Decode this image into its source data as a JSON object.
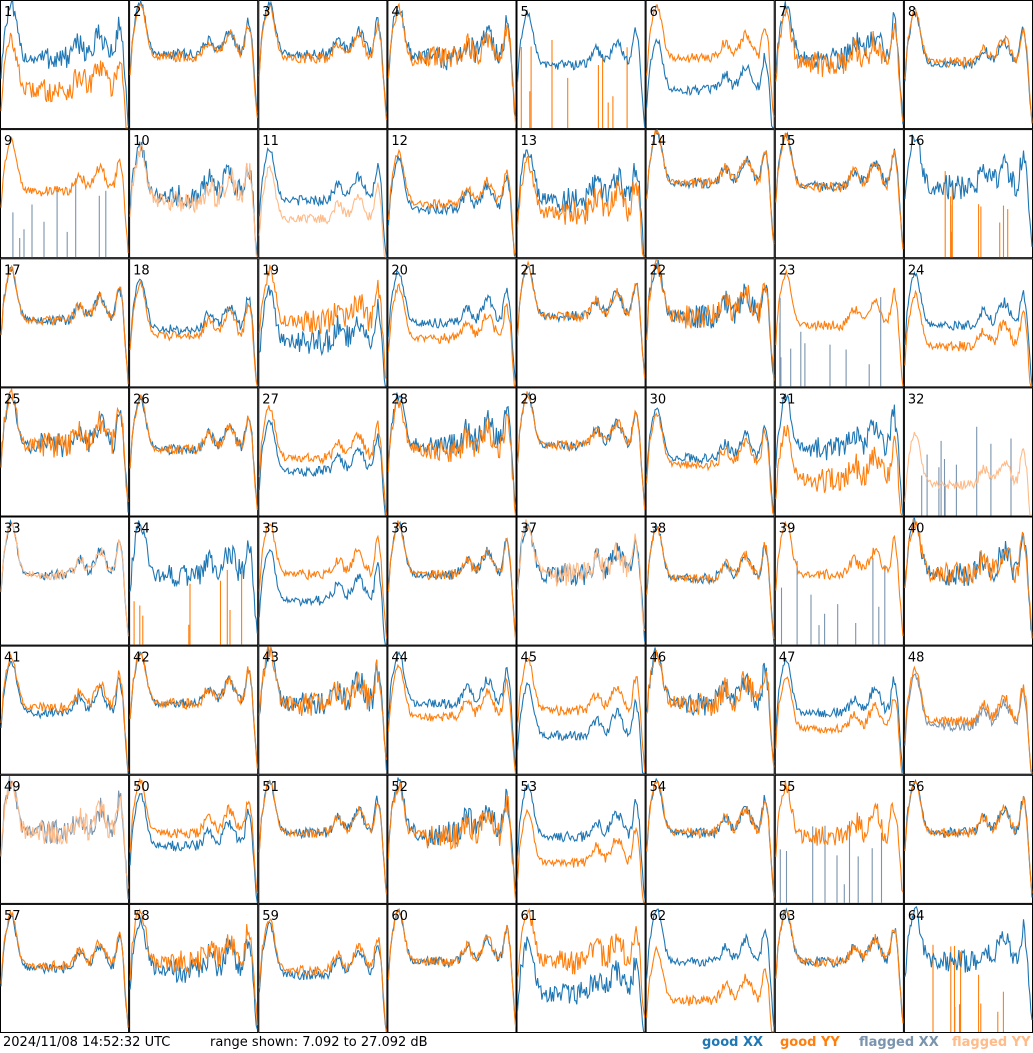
{
  "footer": {
    "timestamp": "2024/11/08 14:52:32 UTC",
    "range": "range shown: 7.092 to 27.092 dB"
  },
  "legend": [
    {
      "label": "good XX",
      "color": "#1f77b4"
    },
    {
      "label": "good YY",
      "color": "#ff7f0e"
    },
    {
      "label": "flagged XX",
      "color": "#7a94ae"
    },
    {
      "label": "flagged YY",
      "color": "#ffbb88"
    }
  ],
  "chart_data": {
    "type": "line",
    "grid": {
      "rows": 8,
      "cols": 8
    },
    "yrange_db": [
      7.092,
      27.092
    ],
    "tiles": [
      {
        "label": "1",
        "xx": "good",
        "yy": "good",
        "x_lvl": 0.55,
        "y_lvl": 0.3,
        "front": "yy"
      },
      {
        "label": "2",
        "xx": "good",
        "yy": "good",
        "x_lvl": 0.58,
        "y_lvl": 0.56,
        "front": "yy"
      },
      {
        "label": "3",
        "xx": "good",
        "yy": "good",
        "x_lvl": 0.58,
        "y_lvl": 0.55,
        "front": "yy"
      },
      {
        "label": "4",
        "xx": "good",
        "yy": "good",
        "x_lvl": 0.55,
        "y_lvl": 0.54,
        "front": "yy"
      },
      {
        "label": "5",
        "xx": "good",
        "yy": "good",
        "x_lvl": 0.5,
        "y_lvl": 0.0,
        "front": "xx"
      },
      {
        "label": "6",
        "xx": "good",
        "yy": "good",
        "x_lvl": 0.3,
        "y_lvl": 0.55,
        "front": "yy"
      },
      {
        "label": "7",
        "xx": "good",
        "yy": "good",
        "x_lvl": 0.56,
        "y_lvl": 0.5,
        "front": "yy"
      },
      {
        "label": "8",
        "xx": "good",
        "yy": "good",
        "x_lvl": 0.5,
        "y_lvl": 0.52,
        "front": "yy"
      },
      {
        "label": "9",
        "xx": "flagged",
        "yy": "good",
        "x_lvl": 0.0,
        "y_lvl": 0.52,
        "front": "yy"
      },
      {
        "label": "10",
        "xx": "good",
        "yy": "flagged",
        "x_lvl": 0.48,
        "y_lvl": 0.44,
        "front": "yy"
      },
      {
        "label": "11",
        "xx": "good",
        "yy": "flagged",
        "x_lvl": 0.45,
        "y_lvl": 0.3,
        "front": "yy"
      },
      {
        "label": "12",
        "xx": "good",
        "yy": "good",
        "x_lvl": 0.38,
        "y_lvl": 0.42,
        "front": "yy"
      },
      {
        "label": "13",
        "xx": "good",
        "yy": "good",
        "x_lvl": 0.45,
        "y_lvl": 0.35,
        "front": "yy"
      },
      {
        "label": "14",
        "xx": "good",
        "yy": "good",
        "x_lvl": 0.58,
        "y_lvl": 0.58,
        "front": "yy"
      },
      {
        "label": "15",
        "xx": "good",
        "yy": "good",
        "x_lvl": 0.56,
        "y_lvl": 0.55,
        "front": "yy"
      },
      {
        "label": "16",
        "xx": "good",
        "yy": "good",
        "x_lvl": 0.55,
        "y_lvl": 0.0,
        "front": "xx"
      },
      {
        "label": "17",
        "xx": "good",
        "yy": "good",
        "x_lvl": 0.52,
        "y_lvl": 0.52,
        "front": "yy"
      },
      {
        "label": "18",
        "xx": "good",
        "yy": "good",
        "x_lvl": 0.45,
        "y_lvl": 0.4,
        "front": "yy"
      },
      {
        "label": "19",
        "xx": "good",
        "yy": "good",
        "x_lvl": 0.35,
        "y_lvl": 0.5,
        "front": "yy"
      },
      {
        "label": "20",
        "xx": "good",
        "yy": "good",
        "x_lvl": 0.5,
        "y_lvl": 0.38,
        "front": "yy"
      },
      {
        "label": "21",
        "xx": "good",
        "yy": "good",
        "x_lvl": 0.55,
        "y_lvl": 0.55,
        "front": "yy"
      },
      {
        "label": "22",
        "xx": "good",
        "yy": "good",
        "x_lvl": 0.55,
        "y_lvl": 0.55,
        "front": "yy"
      },
      {
        "label": "23",
        "xx": "flagged",
        "yy": "good",
        "x_lvl": 0.0,
        "y_lvl": 0.48,
        "front": "yy"
      },
      {
        "label": "24",
        "xx": "good",
        "yy": "good",
        "x_lvl": 0.48,
        "y_lvl": 0.32,
        "front": "yy"
      },
      {
        "label": "25",
        "xx": "good",
        "yy": "good",
        "x_lvl": 0.55,
        "y_lvl": 0.55,
        "front": "yy"
      },
      {
        "label": "26",
        "xx": "good",
        "yy": "good",
        "x_lvl": 0.52,
        "y_lvl": 0.52,
        "front": "yy"
      },
      {
        "label": "27",
        "xx": "good",
        "yy": "good",
        "x_lvl": 0.35,
        "y_lvl": 0.45,
        "front": "yy"
      },
      {
        "label": "28",
        "xx": "good",
        "yy": "good",
        "x_lvl": 0.55,
        "y_lvl": 0.5,
        "front": "yy"
      },
      {
        "label": "29",
        "xx": "good",
        "yy": "good",
        "x_lvl": 0.55,
        "y_lvl": 0.55,
        "front": "yy"
      },
      {
        "label": "30",
        "xx": "good",
        "yy": "good",
        "x_lvl": 0.45,
        "y_lvl": 0.4,
        "front": "yy"
      },
      {
        "label": "31",
        "xx": "good",
        "yy": "good",
        "x_lvl": 0.52,
        "y_lvl": 0.28,
        "front": "yy"
      },
      {
        "label": "32",
        "xx": "flagged",
        "yy": "flagged",
        "x_lvl": 0.0,
        "y_lvl": 0.25,
        "front": "yy"
      },
      {
        "label": "33",
        "xx": "good",
        "yy": "flagged",
        "x_lvl": 0.55,
        "y_lvl": 0.55,
        "front": "yy"
      },
      {
        "label": "34",
        "xx": "good",
        "yy": "good",
        "x_lvl": 0.55,
        "y_lvl": 0.0,
        "front": "xx"
      },
      {
        "label": "35",
        "xx": "good",
        "yy": "good",
        "x_lvl": 0.35,
        "y_lvl": 0.55,
        "front": "yy"
      },
      {
        "label": "36",
        "xx": "good",
        "yy": "good",
        "x_lvl": 0.55,
        "y_lvl": 0.55,
        "front": "yy"
      },
      {
        "label": "37",
        "xx": "good",
        "yy": "flagged",
        "x_lvl": 0.55,
        "y_lvl": 0.55,
        "front": "yy"
      },
      {
        "label": "38",
        "xx": "good",
        "yy": "good",
        "x_lvl": 0.52,
        "y_lvl": 0.52,
        "front": "yy"
      },
      {
        "label": "39",
        "xx": "flagged",
        "yy": "good",
        "x_lvl": 0.0,
        "y_lvl": 0.55,
        "front": "yy"
      },
      {
        "label": "40",
        "xx": "good",
        "yy": "good",
        "x_lvl": 0.55,
        "y_lvl": 0.55,
        "front": "yy"
      },
      {
        "label": "41",
        "xx": "good",
        "yy": "good",
        "x_lvl": 0.48,
        "y_lvl": 0.52,
        "front": "yy"
      },
      {
        "label": "42",
        "xx": "good",
        "yy": "good",
        "x_lvl": 0.55,
        "y_lvl": 0.55,
        "front": "yy"
      },
      {
        "label": "43",
        "xx": "good",
        "yy": "good",
        "x_lvl": 0.55,
        "y_lvl": 0.55,
        "front": "yy"
      },
      {
        "label": "44",
        "xx": "good",
        "yy": "good",
        "x_lvl": 0.55,
        "y_lvl": 0.45,
        "front": "yy"
      },
      {
        "label": "45",
        "xx": "good",
        "yy": "good",
        "x_lvl": 0.3,
        "y_lvl": 0.5,
        "front": "yy"
      },
      {
        "label": "46",
        "xx": "good",
        "yy": "good",
        "x_lvl": 0.55,
        "y_lvl": 0.55,
        "front": "yy"
      },
      {
        "label": "47",
        "xx": "good",
        "yy": "good",
        "x_lvl": 0.48,
        "y_lvl": 0.36,
        "front": "yy"
      },
      {
        "label": "48",
        "xx": "flagged",
        "yy": "good",
        "x_lvl": 0.38,
        "y_lvl": 0.42,
        "front": "yy"
      },
      {
        "label": "49",
        "xx": "flagged",
        "yy": "flagged",
        "x_lvl": 0.55,
        "y_lvl": 0.55,
        "front": "yy"
      },
      {
        "label": "50",
        "xx": "good",
        "yy": "good",
        "x_lvl": 0.45,
        "y_lvl": 0.55,
        "front": "yy"
      },
      {
        "label": "51",
        "xx": "good",
        "yy": "good",
        "x_lvl": 0.55,
        "y_lvl": 0.55,
        "front": "yy"
      },
      {
        "label": "52",
        "xx": "good",
        "yy": "good",
        "x_lvl": 0.55,
        "y_lvl": 0.52,
        "front": "yy"
      },
      {
        "label": "53",
        "xx": "good",
        "yy": "good",
        "x_lvl": 0.52,
        "y_lvl": 0.32,
        "front": "yy"
      },
      {
        "label": "54",
        "xx": "good",
        "yy": "good",
        "x_lvl": 0.55,
        "y_lvl": 0.55,
        "front": "yy"
      },
      {
        "label": "55",
        "xx": "flagged",
        "yy": "good",
        "x_lvl": 0.0,
        "y_lvl": 0.52,
        "front": "yy"
      },
      {
        "label": "56",
        "xx": "good",
        "yy": "good",
        "x_lvl": 0.55,
        "y_lvl": 0.55,
        "front": "yy"
      },
      {
        "label": "57",
        "xx": "good",
        "yy": "good",
        "x_lvl": 0.5,
        "y_lvl": 0.52,
        "front": "yy"
      },
      {
        "label": "58",
        "xx": "good",
        "yy": "good",
        "x_lvl": 0.48,
        "y_lvl": 0.55,
        "front": "yy"
      },
      {
        "label": "59",
        "xx": "good",
        "yy": "good",
        "x_lvl": 0.45,
        "y_lvl": 0.48,
        "front": "yy"
      },
      {
        "label": "60",
        "xx": "good",
        "yy": "good",
        "x_lvl": 0.55,
        "y_lvl": 0.55,
        "front": "yy"
      },
      {
        "label": "61",
        "xx": "good",
        "yy": "good",
        "x_lvl": 0.3,
        "y_lvl": 0.55,
        "front": "yy"
      },
      {
        "label": "62",
        "xx": "good",
        "yy": "good",
        "x_lvl": 0.55,
        "y_lvl": 0.25,
        "front": "yy"
      },
      {
        "label": "63",
        "xx": "good",
        "yy": "good",
        "x_lvl": 0.55,
        "y_lvl": 0.55,
        "front": "yy"
      },
      {
        "label": "64",
        "xx": "good",
        "yy": "good",
        "x_lvl": 0.55,
        "y_lvl": 0.0,
        "front": "xx"
      }
    ]
  }
}
